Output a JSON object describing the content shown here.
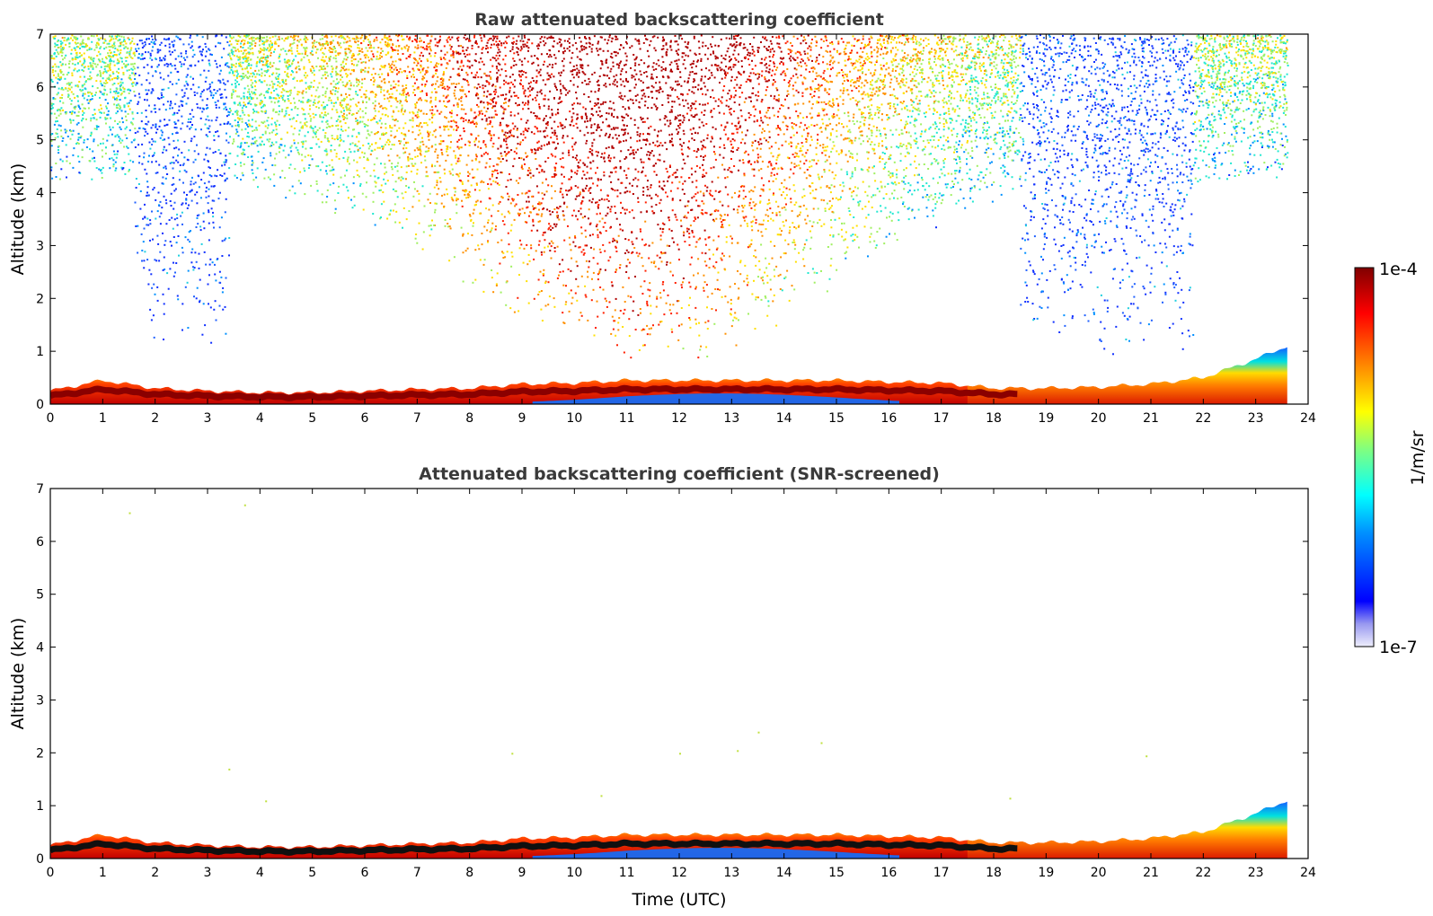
{
  "chart_data": [
    {
      "type": "heatmap",
      "title": "Raw attenuated backscattering coefficient",
      "xlabel": "",
      "ylabel": "Altitude (km)",
      "xlim": [
        0,
        24
      ],
      "ylim": [
        0,
        7
      ],
      "xticks": [
        "0",
        "1",
        "2",
        "3",
        "4",
        "5",
        "6",
        "7",
        "8",
        "9",
        "10",
        "11",
        "12",
        "13",
        "14",
        "15",
        "16",
        "17",
        "18",
        "19",
        "20",
        "21",
        "22",
        "23",
        "24"
      ],
      "yticks": [
        "0",
        "1",
        "2",
        "3",
        "4",
        "5",
        "6",
        "7"
      ],
      "data_end_time": 23.6,
      "boundary_layer_top_km": [
        [
          0,
          0.25
        ],
        [
          1,
          0.45
        ],
        [
          2,
          0.3
        ],
        [
          3,
          0.25
        ],
        [
          4,
          0.22
        ],
        [
          5,
          0.22
        ],
        [
          6,
          0.25
        ],
        [
          7,
          0.28
        ],
        [
          8,
          0.3
        ],
        [
          9,
          0.38
        ],
        [
          10,
          0.4
        ],
        [
          11,
          0.45
        ],
        [
          12,
          0.45
        ],
        [
          13,
          0.45
        ],
        [
          14,
          0.45
        ],
        [
          15,
          0.45
        ],
        [
          16,
          0.42
        ],
        [
          17,
          0.4
        ],
        [
          18,
          0.3
        ],
        [
          19,
          0.3
        ],
        [
          20,
          0.32
        ],
        [
          21,
          0.38
        ],
        [
          22,
          0.5
        ],
        [
          23,
          0.85
        ],
        [
          23.6,
          1.1
        ]
      ],
      "noise_regions": [
        {
          "t": [
            0,
            1.6
          ],
          "level": "high"
        },
        {
          "t": [
            1.6,
            2.1
          ],
          "level": "low"
        },
        {
          "t": [
            2.1,
            3.4
          ],
          "level": "low"
        },
        {
          "t": [
            3.4,
            18.5
          ],
          "level": "high"
        },
        {
          "t": [
            18.5,
            20.6
          ],
          "level": "low"
        },
        {
          "t": [
            20.6,
            21.8
          ],
          "level": "low"
        },
        {
          "t": [
            21.8,
            23.6
          ],
          "level": "high"
        }
      ]
    },
    {
      "type": "heatmap",
      "title": "Attenuated backscattering coefficient (SNR-screened)",
      "xlabel": "Time (UTC)",
      "ylabel": "Altitude (km)",
      "xlim": [
        0,
        24
      ],
      "ylim": [
        0,
        7
      ],
      "xticks": [
        "0",
        "1",
        "2",
        "3",
        "4",
        "5",
        "6",
        "7",
        "8",
        "9",
        "10",
        "11",
        "12",
        "13",
        "14",
        "15",
        "16",
        "17",
        "18",
        "19",
        "20",
        "21",
        "22",
        "23",
        "24"
      ],
      "yticks": [
        "0",
        "1",
        "2",
        "3",
        "4",
        "5",
        "6",
        "7"
      ],
      "data_end_time": 23.6
    }
  ],
  "colorbar": {
    "label": "1/m/sr",
    "max_label": "1e-4",
    "min_label": "1e-7",
    "scale": "log",
    "colors": [
      "#e8e8f8",
      "#a0a0f0",
      "#0000ff",
      "#0080ff",
      "#00ffff",
      "#80ff80",
      "#ffff00",
      "#ff8000",
      "#ff0000",
      "#800000"
    ]
  }
}
